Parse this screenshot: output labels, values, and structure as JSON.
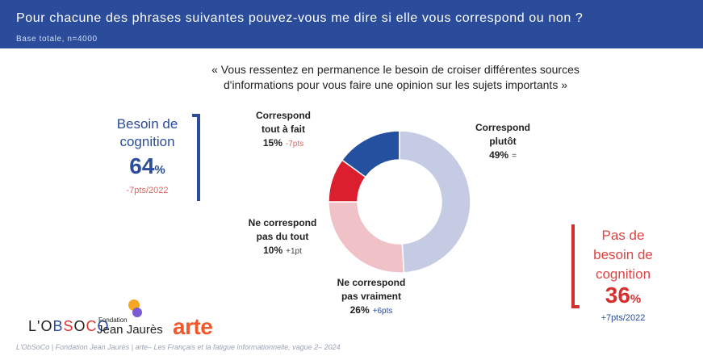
{
  "header": {
    "title": "Pour chacune des phrases suivantes pouvez-vous me dire si elle vous correspond ou non ?",
    "base": "Base totale, n=4000"
  },
  "quote": {
    "line1": "« Vous ressentez en permanence le besoin de croiser différentes sources",
    "line2": "d'informations pour vous faire une opinion sur les sujets importants »"
  },
  "summary_left": {
    "label_line1": "Besoin de",
    "label_line2": "cognition",
    "pct": "64",
    "unit": "%",
    "delta": "-7pts/2022",
    "color": "#2a4c9b"
  },
  "summary_right": {
    "label_line1": "Pas de",
    "label_line2": "besoin de",
    "label_line3": "cognition",
    "pct": "36",
    "unit": "%",
    "delta": "+7pts/2022",
    "color": "#d62f2f"
  },
  "chart_data": {
    "type": "pie",
    "donut": true,
    "series": [
      {
        "name_line1": "Correspond",
        "name_line2": "tout à fait",
        "value": 15,
        "value_label": "15%",
        "delta": "-7pts",
        "color": "#2450a0",
        "delta_color": "#e0665f"
      },
      {
        "name_line1": "Correspond",
        "name_line2": "plutôt",
        "value": 49,
        "value_label": "49%",
        "delta": "=",
        "color": "#c4cbe3",
        "delta_color": "#444444"
      },
      {
        "name_line1": "Ne correspond",
        "name_line2": "pas vraiment",
        "value": 26,
        "value_label": "26%",
        "delta": "+6pts",
        "color": "#f0c2c7",
        "delta_color": "#2a4c9b"
      },
      {
        "name_line1": "Ne correspond",
        "name_line2": "pas du tout",
        "value": 10,
        "value_label": "10%",
        "delta": "+1pt",
        "color": "#db1f2e",
        "delta_color": "#444444"
      }
    ]
  },
  "logos": {
    "obsoco_a": "L'O",
    "obsoco_b": "B",
    "obsoco_c": "S",
    "obsoco_d": "O",
    "obsoco_e": "C",
    "obsoco_f": "O",
    "fondation": "Fondation",
    "jean_jaures": "Jean Jaurès",
    "arte": "arte"
  },
  "footer": "L'ObSoCo | Fondation Jean Jaurès | arte– Les Français et la fatigue informationnelle, vague 2– 2024"
}
